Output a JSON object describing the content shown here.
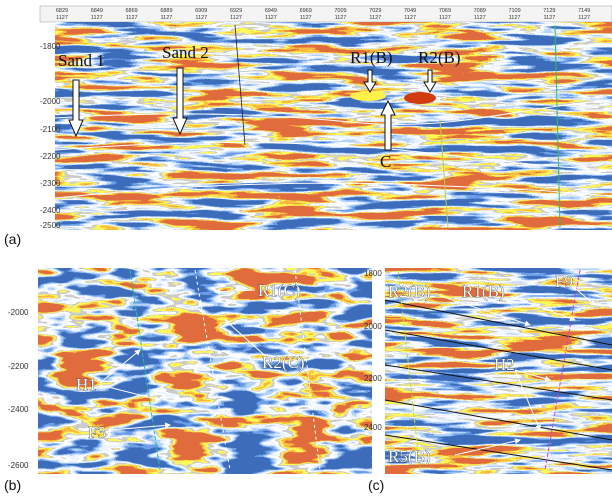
{
  "panel_a": {
    "label": "(a)",
    "traces": [
      "6829",
      "6849",
      "6869",
      "6889",
      "6909",
      "6929",
      "6949",
      "6969",
      "7009",
      "7029",
      "7049",
      "7069",
      "7089",
      "7109",
      "7129",
      "7149"
    ],
    "trace_line": "1127",
    "depths": [
      "-1800",
      "-2000",
      "-2100",
      "-2200",
      "-2300",
      "-2400",
      "-2500"
    ],
    "annotations": {
      "sand1": "Sand 1",
      "sand2": "Sand 2",
      "r1": "R1(B)",
      "r2": "R2(B)",
      "c": "C"
    }
  },
  "panel_b": {
    "label": "(b)",
    "depths": [
      "-2000",
      "-2200",
      "-2400",
      "-2600"
    ],
    "annotations": {
      "r1": "R1(C)",
      "r2": "R2(C)",
      "h1": "H1",
      "f3": "F3"
    }
  },
  "panel_c": {
    "label": "(c)",
    "depths": [
      "1800",
      "2000",
      "2200",
      "2400"
    ],
    "annotations": {
      "r2": "R2(B)",
      "r1": "R1(B)",
      "f9": "F9",
      "h2": "H2",
      "r5": "R5(B)"
    }
  }
}
